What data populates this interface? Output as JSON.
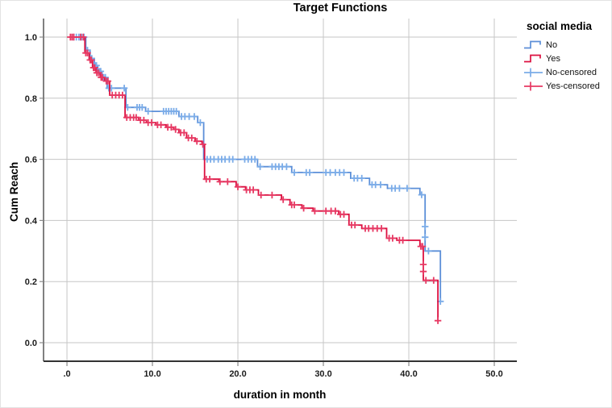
{
  "chart_data": {
    "type": "line",
    "subtype": "kaplan-meier-step-survival",
    "title": "Target Functions",
    "xlabel": "duration in month",
    "ylabel": "Cum Reach",
    "legend_title": "social media",
    "legend_position": "right",
    "grid": true,
    "xlim": [
      -2.74,
      52.64
    ],
    "ylim": [
      -0.0607,
      1.0607
    ],
    "xticks": [
      {
        "v": 0,
        "label": ".0"
      },
      {
        "v": 10,
        "label": "10.0"
      },
      {
        "v": 20,
        "label": "20.0"
      },
      {
        "v": 30,
        "label": "30.0"
      },
      {
        "v": 40,
        "label": "40.0"
      },
      {
        "v": 50,
        "label": "50.0"
      }
    ],
    "yticks": [
      {
        "v": 0.0,
        "label": "0.0"
      },
      {
        "v": 0.2,
        "label": "0.2"
      },
      {
        "v": 0.4,
        "label": "0.4"
      },
      {
        "v": 0.6,
        "label": "0.6"
      },
      {
        "v": 0.8,
        "label": "0.8"
      },
      {
        "v": 1.0,
        "label": "1.0"
      }
    ],
    "colors": {
      "grid": "#c6c6c6",
      "y_axis_line": "#4a4a4a",
      "x_axis_line": "#333333",
      "tick_mark": "#8a8a8a",
      "no_line": "#5C8FD8",
      "no_censored": "#7BACE8",
      "yes_line": "#DC1040",
      "yes_censored": "#E73963"
    },
    "legend_entries": [
      {
        "label": "No",
        "symbol": "step",
        "color_key": "no_line"
      },
      {
        "label": "Yes",
        "symbol": "step",
        "color_key": "yes_line"
      },
      {
        "label": "No-censored",
        "symbol": "censor",
        "color_key": "no_censored"
      },
      {
        "label": "Yes-censored",
        "symbol": "censor",
        "color_key": "yes_censored"
      }
    ],
    "series": [
      {
        "name": "No",
        "color_key": "no_line",
        "censor_color_key": "no_censored",
        "points": [
          [
            0.3,
            1.0
          ],
          [
            2.2,
            0.957
          ],
          [
            2.7,
            0.93
          ],
          [
            3.2,
            0.907
          ],
          [
            3.6,
            0.888
          ],
          [
            4.1,
            0.868
          ],
          [
            4.7,
            0.833
          ],
          [
            6.9,
            0.77
          ],
          [
            9.2,
            0.757
          ],
          [
            13.1,
            0.74
          ],
          [
            15.3,
            0.72
          ],
          [
            16.0,
            0.6
          ],
          [
            22.3,
            0.576
          ],
          [
            26.3,
            0.557
          ],
          [
            33.2,
            0.538
          ],
          [
            35.4,
            0.517
          ],
          [
            37.5,
            0.505
          ],
          [
            41.3,
            0.484
          ],
          [
            41.9,
            0.3
          ],
          [
            43.7,
            0.135
          ]
        ],
        "censored": [
          [
            0.8,
            1.0
          ],
          [
            1.1,
            1.0
          ],
          [
            1.4,
            1.0
          ],
          [
            1.7,
            1.0
          ],
          [
            2.0,
            1.0
          ],
          [
            2.4,
            0.957
          ],
          [
            2.9,
            0.93
          ],
          [
            3.3,
            0.907
          ],
          [
            3.45,
            0.907
          ],
          [
            3.8,
            0.888
          ],
          [
            3.95,
            0.888
          ],
          [
            4.3,
            0.868
          ],
          [
            4.5,
            0.868
          ],
          [
            4.9,
            0.833
          ],
          [
            5.2,
            0.833
          ],
          [
            6.7,
            0.833
          ],
          [
            7.1,
            0.77
          ],
          [
            8.2,
            0.77
          ],
          [
            8.5,
            0.77
          ],
          [
            8.8,
            0.77
          ],
          [
            9.5,
            0.757
          ],
          [
            11.3,
            0.757
          ],
          [
            11.6,
            0.757
          ],
          [
            11.9,
            0.757
          ],
          [
            12.2,
            0.757
          ],
          [
            12.5,
            0.757
          ],
          [
            12.8,
            0.757
          ],
          [
            13.4,
            0.74
          ],
          [
            13.8,
            0.74
          ],
          [
            14.3,
            0.74
          ],
          [
            14.9,
            0.74
          ],
          [
            15.6,
            0.72
          ],
          [
            16.4,
            0.6
          ],
          [
            16.8,
            0.6
          ],
          [
            17.2,
            0.6
          ],
          [
            17.7,
            0.6
          ],
          [
            18.1,
            0.6
          ],
          [
            18.5,
            0.6
          ],
          [
            19.0,
            0.6
          ],
          [
            19.4,
            0.6
          ],
          [
            20.8,
            0.6
          ],
          [
            21.2,
            0.6
          ],
          [
            21.6,
            0.6
          ],
          [
            22.0,
            0.6
          ],
          [
            22.6,
            0.576
          ],
          [
            24.0,
            0.576
          ],
          [
            24.4,
            0.576
          ],
          [
            24.8,
            0.576
          ],
          [
            25.2,
            0.576
          ],
          [
            25.7,
            0.576
          ],
          [
            26.6,
            0.557
          ],
          [
            28.0,
            0.557
          ],
          [
            28.4,
            0.557
          ],
          [
            30.3,
            0.557
          ],
          [
            30.8,
            0.557
          ],
          [
            31.4,
            0.557
          ],
          [
            31.9,
            0.557
          ],
          [
            32.4,
            0.557
          ],
          [
            33.6,
            0.538
          ],
          [
            34.0,
            0.538
          ],
          [
            34.5,
            0.538
          ],
          [
            35.7,
            0.517
          ],
          [
            36.1,
            0.517
          ],
          [
            36.7,
            0.517
          ],
          [
            38.0,
            0.505
          ],
          [
            38.4,
            0.505
          ],
          [
            38.9,
            0.505
          ],
          [
            39.8,
            0.505
          ],
          [
            41.5,
            0.484
          ],
          [
            41.9,
            0.38
          ],
          [
            41.9,
            0.345
          ],
          [
            42.3,
            0.3
          ],
          [
            43.7,
            0.135
          ]
        ]
      },
      {
        "name": "Yes",
        "color_key": "yes_line",
        "censor_color_key": "yes_censored",
        "points": [
          [
            0.2,
            1.0
          ],
          [
            2.1,
            0.948
          ],
          [
            2.6,
            0.925
          ],
          [
            3.0,
            0.9
          ],
          [
            3.4,
            0.883
          ],
          [
            3.9,
            0.868
          ],
          [
            4.4,
            0.856
          ],
          [
            5.0,
            0.81
          ],
          [
            6.8,
            0.737
          ],
          [
            8.4,
            0.728
          ],
          [
            9.3,
            0.72
          ],
          [
            10.4,
            0.713
          ],
          [
            11.6,
            0.705
          ],
          [
            12.5,
            0.698
          ],
          [
            13.1,
            0.687
          ],
          [
            14.0,
            0.67
          ],
          [
            15.0,
            0.659
          ],
          [
            15.8,
            0.649
          ],
          [
            16.1,
            0.535
          ],
          [
            17.8,
            0.527
          ],
          [
            19.8,
            0.51
          ],
          [
            20.9,
            0.5
          ],
          [
            22.4,
            0.483
          ],
          [
            25.1,
            0.468
          ],
          [
            26.1,
            0.451
          ],
          [
            27.5,
            0.44
          ],
          [
            28.8,
            0.431
          ],
          [
            31.8,
            0.42
          ],
          [
            33.0,
            0.385
          ],
          [
            34.5,
            0.374
          ],
          [
            37.4,
            0.342
          ],
          [
            38.6,
            0.335
          ],
          [
            41.3,
            0.315
          ],
          [
            41.7,
            0.204
          ],
          [
            43.4,
            0.072
          ]
        ],
        "censored": [
          [
            0.4,
            1.0
          ],
          [
            0.6,
            1.0
          ],
          [
            0.8,
            1.0
          ],
          [
            1.6,
            1.0
          ],
          [
            1.9,
            1.0
          ],
          [
            2.2,
            0.948
          ],
          [
            2.4,
            0.948
          ],
          [
            2.7,
            0.925
          ],
          [
            2.85,
            0.925
          ],
          [
            3.1,
            0.9
          ],
          [
            3.25,
            0.9
          ],
          [
            3.5,
            0.883
          ],
          [
            3.7,
            0.883
          ],
          [
            4.0,
            0.868
          ],
          [
            4.15,
            0.868
          ],
          [
            4.6,
            0.856
          ],
          [
            4.8,
            0.856
          ],
          [
            5.3,
            0.81
          ],
          [
            5.7,
            0.81
          ],
          [
            6.1,
            0.81
          ],
          [
            6.5,
            0.81
          ],
          [
            7.0,
            0.737
          ],
          [
            7.4,
            0.737
          ],
          [
            7.8,
            0.737
          ],
          [
            8.1,
            0.737
          ],
          [
            8.6,
            0.728
          ],
          [
            9.0,
            0.728
          ],
          [
            9.5,
            0.72
          ],
          [
            9.9,
            0.72
          ],
          [
            10.6,
            0.713
          ],
          [
            11.0,
            0.713
          ],
          [
            11.8,
            0.705
          ],
          [
            12.2,
            0.705
          ],
          [
            12.7,
            0.698
          ],
          [
            13.3,
            0.687
          ],
          [
            13.7,
            0.687
          ],
          [
            14.2,
            0.67
          ],
          [
            14.6,
            0.67
          ],
          [
            15.2,
            0.659
          ],
          [
            15.9,
            0.649
          ],
          [
            16.3,
            0.535
          ],
          [
            16.7,
            0.535
          ],
          [
            17.9,
            0.527
          ],
          [
            18.8,
            0.527
          ],
          [
            20.0,
            0.51
          ],
          [
            21.0,
            0.5
          ],
          [
            21.4,
            0.5
          ],
          [
            21.8,
            0.5
          ],
          [
            22.7,
            0.483
          ],
          [
            24.0,
            0.483
          ],
          [
            25.3,
            0.468
          ],
          [
            26.3,
            0.451
          ],
          [
            26.6,
            0.451
          ],
          [
            27.7,
            0.44
          ],
          [
            29.0,
            0.431
          ],
          [
            30.3,
            0.431
          ],
          [
            30.9,
            0.431
          ],
          [
            31.4,
            0.431
          ],
          [
            32.0,
            0.42
          ],
          [
            32.4,
            0.42
          ],
          [
            33.3,
            0.385
          ],
          [
            33.7,
            0.385
          ],
          [
            34.9,
            0.374
          ],
          [
            35.3,
            0.374
          ],
          [
            35.8,
            0.374
          ],
          [
            36.3,
            0.374
          ],
          [
            36.8,
            0.374
          ],
          [
            37.7,
            0.342
          ],
          [
            38.1,
            0.342
          ],
          [
            38.9,
            0.335
          ],
          [
            39.3,
            0.335
          ],
          [
            41.4,
            0.315
          ],
          [
            41.6,
            0.315
          ],
          [
            41.7,
            0.256
          ],
          [
            41.7,
            0.233
          ],
          [
            42.0,
            0.204
          ],
          [
            42.9,
            0.204
          ],
          [
            43.4,
            0.072
          ]
        ]
      }
    ]
  }
}
